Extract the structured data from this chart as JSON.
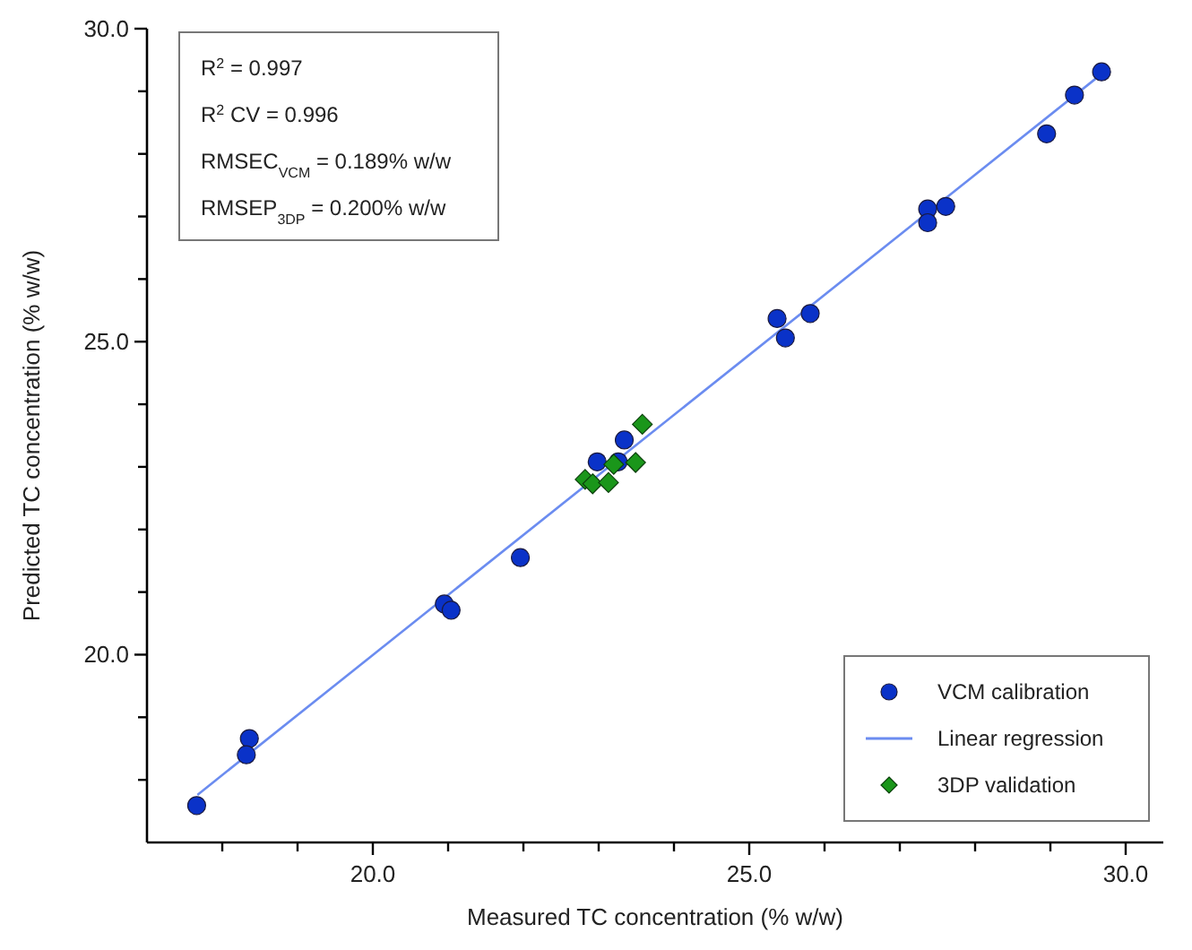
{
  "chart_data": {
    "type": "scatter",
    "xlabel": "Measured TC concentration (% w/w)",
    "ylabel": "Predicted TC concentration (% w/w)",
    "xlim": [
      17,
      30.5
    ],
    "ylim": [
      17,
      30
    ],
    "xticks": [
      {
        "value": 18,
        "label": null
      },
      {
        "value": 19,
        "label": null
      },
      {
        "value": 20,
        "label": "20.0"
      },
      {
        "value": 21,
        "label": null
      },
      {
        "value": 22,
        "label": null
      },
      {
        "value": 23,
        "label": null
      },
      {
        "value": 24,
        "label": null
      },
      {
        "value": 25,
        "label": "25.0"
      },
      {
        "value": 26,
        "label": null
      },
      {
        "value": 27,
        "label": null
      },
      {
        "value": 28,
        "label": null
      },
      {
        "value": 29,
        "label": null
      },
      {
        "value": 30,
        "label": "30.0"
      }
    ],
    "yticks": [
      {
        "value": 18,
        "label": null
      },
      {
        "value": 19,
        "label": null
      },
      {
        "value": 20,
        "label": "20.0"
      },
      {
        "value": 21,
        "label": null
      },
      {
        "value": 22,
        "label": null
      },
      {
        "value": 23,
        "label": null
      },
      {
        "value": 24,
        "label": null
      },
      {
        "value": 25,
        "label": "25.0"
      },
      {
        "value": 26,
        "label": null
      },
      {
        "value": 27,
        "label": null
      },
      {
        "value": 28,
        "label": null
      },
      {
        "value": 29,
        "label": null
      },
      {
        "value": 30,
        "label": "30.0"
      }
    ],
    "grid": false,
    "legend": "bottom right",
    "annotations": [
      "R$^{2}$ = 0.997",
      "R$^{2}$ CV = 0.996",
      "RMSEC$_{VCM}$ = 0.189% w/w",
      "RMSEP$_{3DP}$ = 0.200% w/w"
    ],
    "series": [
      {
        "name": "VCM calibration",
        "marker": "circle",
        "color": "#0a32c8",
        "x": [
          17.66,
          18.36,
          18.32,
          20.95,
          21.04,
          21.96,
          22.98,
          23.34,
          23.26,
          25.37,
          25.48,
          25.81,
          27.37,
          27.37,
          27.61,
          28.95,
          29.32,
          29.68
        ],
        "values": [
          17.59,
          18.66,
          18.4,
          20.81,
          20.71,
          21.55,
          23.08,
          23.43,
          23.08,
          25.37,
          25.06,
          25.45,
          27.12,
          26.9,
          27.16,
          28.32,
          28.94,
          29.31
        ]
      },
      {
        "name": "Linear regression",
        "type": "line",
        "marker": "none",
        "line_style": "solid",
        "color": "#6b8cf0",
        "x": [
          17.67,
          29.6
        ],
        "values": [
          17.76,
          29.2
        ]
      },
      {
        "name": "3DP validation",
        "marker": "diamond",
        "color": "#1a961a",
        "x": [
          23.58,
          23.49,
          23.2,
          22.82,
          22.92,
          23.13
        ],
        "values": [
          23.68,
          23.07,
          23.04,
          22.8,
          22.73,
          22.75
        ]
      }
    ]
  }
}
